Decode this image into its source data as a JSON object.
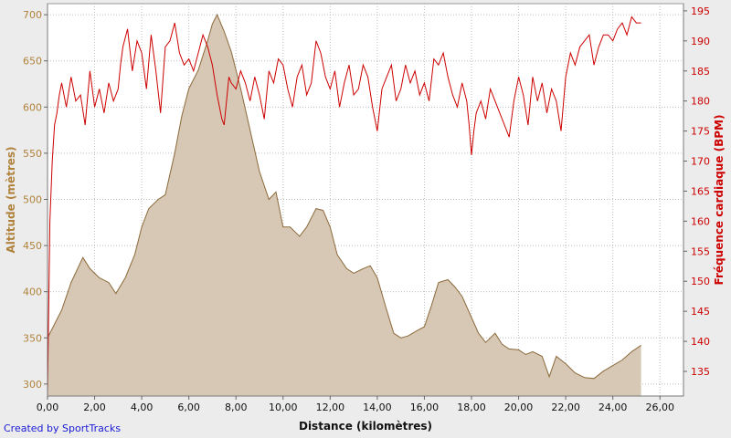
{
  "credit": "Created by SportTracks",
  "colors": {
    "altitude_fill": "#d6c8b4",
    "altitude_line": "#8c6a3c",
    "altitude_text": "#b0823c",
    "heart_rate": "#cc0000",
    "grid": "#bdbdbd",
    "plot_bg": "#ffffff"
  },
  "chart_data": {
    "type": "area",
    "xlabel": "Distance (kilomètres)",
    "xlim": [
      0,
      27
    ],
    "xticks": [
      "0,00",
      "2,00",
      "4,00",
      "6,00",
      "8,00",
      "10,00",
      "12,00",
      "14,00",
      "16,00",
      "18,00",
      "20,00",
      "22,00",
      "24,00",
      "26,00"
    ],
    "grid": true,
    "y_left": {
      "label": "Altitude (mètres)",
      "lim": [
        287,
        712
      ],
      "ticks": [
        "300",
        "350",
        "400",
        "450",
        "500",
        "550",
        "600",
        "650",
        "700"
      ]
    },
    "y_right": {
      "label": "Fréquence cardiaque (BPM)",
      "lim": [
        130.9,
        196.2
      ],
      "ticks": [
        "135",
        "140",
        "145",
        "150",
        "155",
        "160",
        "165",
        "170",
        "175",
        "180",
        "185",
        "190",
        "195"
      ]
    },
    "series": [
      {
        "name": "Altitude",
        "axis": "left",
        "kind": "area",
        "x": [
          0,
          0.3,
          0.6,
          1.0,
          1.5,
          1.8,
          2.2,
          2.6,
          2.9,
          3.3,
          3.7,
          4.0,
          4.3,
          4.7,
          5.0,
          5.4,
          5.7,
          6.0,
          6.4,
          6.8,
          7.0,
          7.2,
          7.5,
          7.8,
          8.2,
          8.6,
          9.0,
          9.4,
          9.7,
          10.0,
          10.3,
          10.7,
          11.0,
          11.4,
          11.7,
          12.0,
          12.3,
          12.7,
          13.0,
          13.4,
          13.7,
          14.0,
          14.4,
          14.7,
          15.0,
          15.3,
          15.7,
          16.0,
          16.3,
          16.6,
          17.0,
          17.3,
          17.6,
          18.0,
          18.3,
          18.6,
          19.0,
          19.3,
          19.6,
          20.0,
          20.3,
          20.6,
          21.0,
          21.3,
          21.6,
          22.0,
          22.4,
          22.8,
          23.2,
          23.6,
          24.0,
          24.4,
          24.8,
          25.2
        ],
        "values": [
          350,
          365,
          380,
          410,
          437,
          425,
          415,
          410,
          398,
          415,
          440,
          470,
          490,
          500,
          505,
          550,
          590,
          620,
          640,
          672,
          690,
          700,
          682,
          660,
          620,
          575,
          530,
          500,
          508,
          470,
          470,
          460,
          470,
          490,
          488,
          470,
          440,
          425,
          420,
          425,
          428,
          415,
          380,
          355,
          350,
          352,
          358,
          362,
          385,
          410,
          413,
          405,
          395,
          372,
          355,
          345,
          355,
          343,
          338,
          337,
          332,
          335,
          330,
          308,
          330,
          322,
          312,
          307,
          306,
          314,
          320,
          326,
          335,
          342
        ]
      },
      {
        "name": "Fréquence cardiaque",
        "axis": "right",
        "kind": "line",
        "x": [
          0,
          0.1,
          0.2,
          0.3,
          0.4,
          0.5,
          0.6,
          0.8,
          1.0,
          1.2,
          1.4,
          1.6,
          1.8,
          2.0,
          2.2,
          2.4,
          2.6,
          2.8,
          3.0,
          3.1,
          3.2,
          3.4,
          3.6,
          3.8,
          4.0,
          4.2,
          4.4,
          4.6,
          4.8,
          5.0,
          5.2,
          5.4,
          5.6,
          5.8,
          6.0,
          6.2,
          6.4,
          6.6,
          6.8,
          7.0,
          7.2,
          7.4,
          7.5,
          7.6,
          7.7,
          7.8,
          8.0,
          8.2,
          8.4,
          8.6,
          8.8,
          9.0,
          9.2,
          9.4,
          9.6,
          9.8,
          10.0,
          10.2,
          10.4,
          10.6,
          10.8,
          11.0,
          11.2,
          11.4,
          11.6,
          11.8,
          12.0,
          12.2,
          12.4,
          12.6,
          12.8,
          13.0,
          13.2,
          13.4,
          13.6,
          13.8,
          14.0,
          14.2,
          14.4,
          14.6,
          14.8,
          15.0,
          15.2,
          15.4,
          15.6,
          15.8,
          16.0,
          16.2,
          16.4,
          16.6,
          16.8,
          17.0,
          17.2,
          17.4,
          17.6,
          17.8,
          17.9,
          18.0,
          18.1,
          18.2,
          18.4,
          18.6,
          18.8,
          19.0,
          19.2,
          19.4,
          19.6,
          19.8,
          19.9,
          20.0,
          20.2,
          20.4,
          20.6,
          20.8,
          21.0,
          21.2,
          21.4,
          21.6,
          21.8,
          22.0,
          22.2,
          22.4,
          22.6,
          22.8,
          23.0,
          23.2,
          23.4,
          23.6,
          23.8,
          24.0,
          24.2,
          24.4,
          24.6,
          24.8,
          25.0,
          25.2
        ],
        "values": [
          131,
          160,
          170,
          176,
          178,
          181,
          183,
          179,
          184,
          180,
          181,
          176,
          185,
          179,
          182,
          178,
          183,
          180,
          182,
          186,
          189,
          192,
          185,
          190,
          188,
          182,
          191,
          185,
          178,
          189,
          190,
          193,
          188,
          186,
          187,
          185,
          188,
          191,
          189,
          186,
          181,
          177,
          176,
          180,
          184,
          183,
          182,
          185,
          183,
          180,
          184,
          181,
          177,
          185,
          183,
          187,
          186,
          182,
          179,
          184,
          186,
          181,
          183,
          190,
          188,
          184,
          182,
          185,
          179,
          183,
          186,
          181,
          182,
          186,
          184,
          179,
          175,
          182,
          184,
          186,
          180,
          182,
          186,
          183,
          185,
          181,
          183,
          180,
          187,
          186,
          188,
          184,
          181,
          179,
          183,
          180,
          176,
          171,
          175,
          178,
          180,
          177,
          182,
          180,
          178,
          176,
          174,
          180,
          182,
          184,
          181,
          176,
          184,
          180,
          183,
          178,
          182,
          180,
          175,
          184,
          188,
          186,
          189,
          190,
          191,
          186,
          189,
          191,
          191,
          190,
          192,
          193,
          191,
          194,
          193,
          193
        ]
      }
    ]
  }
}
